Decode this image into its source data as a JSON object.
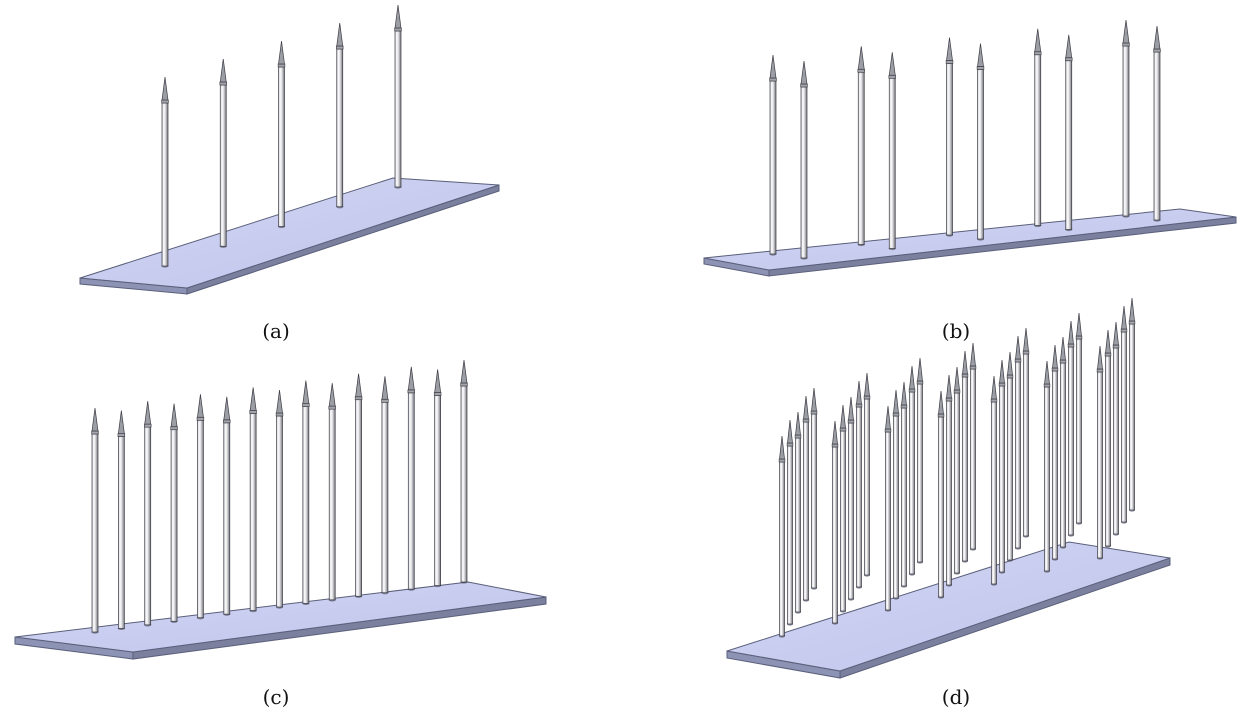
{
  "panels": [
    {
      "id": "a",
      "caption": "(a)",
      "needle_count": 5
    },
    {
      "id": "b",
      "caption": "(b)",
      "needle_count": 10
    },
    {
      "id": "c",
      "caption": "(c)",
      "needle_count": 15
    },
    {
      "id": "d",
      "caption": "(d)",
      "needle_count": 35
    }
  ],
  "colors": {
    "plate_top": "#c9cdf0",
    "plate_side": "#8d93b5",
    "plate_edge": "#5a5f7a",
    "needle_light": "#e4e4e8",
    "needle_dark": "#6f7078",
    "needle_outline": "#3c3c44"
  }
}
